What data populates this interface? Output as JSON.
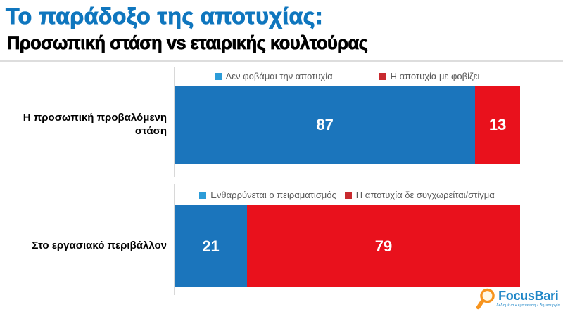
{
  "header": {
    "title": "Το παράδοξο της αποτυχίας:",
    "subtitle": "Προσωπική στάση vs εταιρικής κουλτούρας"
  },
  "chart_data": [
    {
      "type": "bar",
      "orientation": "horizontal_stacked",
      "category": "Η προσωπική προβαλόμενη στάση",
      "xlim": [
        0,
        100
      ],
      "legend_position": "top",
      "grid": false,
      "series": [
        {
          "name": "Δεν φοβάμαι την αποτυχία",
          "value": 87,
          "color": "#1B75BC",
          "swatch": "#2C9CD8"
        },
        {
          "name": "Η αποτυχία με φοβίζει",
          "value": 13,
          "color": "#E9111C",
          "swatch": "#C82A2F"
        }
      ]
    },
    {
      "type": "bar",
      "orientation": "horizontal_stacked",
      "category": "Στο εργασιακό περιβάλλον",
      "xlim": [
        0,
        100
      ],
      "legend_position": "top",
      "grid": false,
      "series": [
        {
          "name": "Ενθαρρύνεται ο πειραματισμός",
          "value": 21,
          "color": "#1B75BC",
          "swatch": "#2C9CD8"
        },
        {
          "name": "Η αποτυχία δε συγχωρείται/στίγμα",
          "value": 79,
          "color": "#E9111C",
          "swatch": "#C82A2F"
        }
      ]
    }
  ],
  "colors": {
    "title_blue": "#0F76BE",
    "subtitle_black": "#000000",
    "bar_blue": "#1B75BC",
    "bar_red": "#E9111C",
    "legend_blue_swatch": "#2C9CD8",
    "legend_red_swatch": "#C82A2F",
    "legend_text": "#595959",
    "divider_gray": "#DDDDDD",
    "logo_blue": "#1E86C7",
    "logo_orange": "#F7941E"
  },
  "logo": {
    "name": "FocusBari",
    "tagline": "δεδομένα • έμπνευση • δημιουργία",
    "icon": "magnifier-icon"
  }
}
